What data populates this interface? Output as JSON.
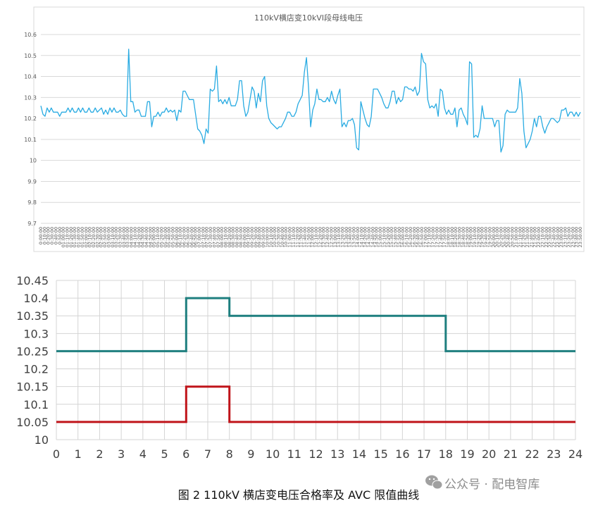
{
  "chart_data": [
    {
      "type": "line",
      "title": "110kV横店变10kVI段母线电压",
      "xlabel": "",
      "ylabel": "",
      "ylim": [
        9.7,
        10.6
      ],
      "y_ticks": [
        "9.7",
        "9.8",
        "9.9",
        "10",
        "10.1",
        "10.2",
        "10.3",
        "10.4",
        "10.5",
        "10.6"
      ],
      "x_tick_labels": [
        "0:00:00",
        "0:10:00",
        "0:20:00",
        "0:30:00",
        "0:40:00",
        "0:50:00",
        "01:00:00",
        "01:10:00",
        "01:20:00",
        "01:30:00",
        "01:40:00",
        "01:50:00",
        "02:00:00",
        "02:10:00",
        "02:20:00",
        "02:30:00",
        "02:40:00",
        "02:50:00",
        "03:00:00",
        "03:10:00",
        "03:20:00",
        "03:30:00",
        "03:40:00",
        "03:50:00",
        "04:00:00",
        "04:10:00",
        "04:20:00",
        "04:30:00",
        "04:40:00",
        "04:50:00",
        "05:00:00",
        "05:10:00",
        "05:20:00",
        "05:30:00",
        "05:40:00",
        "05:50:00",
        "06:00:00",
        "06:10:00",
        "06:20:00",
        "06:30:00",
        "06:40:00",
        "06:50:00",
        "07:00:00",
        "07:10:00",
        "07:20:00",
        "07:30:00",
        "07:40:00",
        "07:50:00",
        "08:00:00",
        "08:10:00",
        "08:20:00",
        "08:30:00",
        "08:40:00",
        "08:50:00",
        "09:00:00",
        "09:10:00",
        "09:20:00",
        "09:30:00",
        "09:40:00",
        "09:50:00",
        "10:00:00",
        "10:10:00",
        "10:20:00",
        "10:30:00",
        "10:40:00",
        "10:50:00",
        "11:00:00",
        "11:10:00",
        "11:20:00",
        "11:30:00",
        "11:40:00",
        "11:50:00",
        "12:00:00",
        "12:10:00",
        "12:20:00",
        "12:30:00",
        "12:40:00",
        "12:50:00",
        "13:00:00",
        "13:10:00",
        "13:20:00",
        "13:30:00",
        "13:40:00",
        "13:50:00",
        "14:00:00",
        "14:10:00",
        "14:20:00",
        "14:30:00",
        "14:40:00",
        "14:50:00",
        "15:00:00",
        "15:10:00",
        "15:20:00",
        "15:30:00",
        "15:40:00",
        "15:50:00",
        "16:00:00",
        "16:10:00",
        "16:20:00",
        "16:30:00",
        "16:40:00",
        "16:50:00",
        "17:00:00",
        "17:10:00",
        "17:20:00",
        "17:30:00",
        "17:40:00",
        "17:50:00",
        "18:00:00",
        "18:10:00",
        "18:20:00",
        "18:30:00",
        "18:40:00",
        "18:50:00",
        "19:00:00",
        "19:10:00",
        "19:20:00",
        "19:30:00",
        "19:40:00",
        "19:50:00",
        "20:00:00",
        "20:10:00",
        "20:20:00",
        "20:30:00",
        "20:40:00",
        "20:50:00",
        "21:00:00",
        "21:10:00",
        "21:20:00",
        "21:30:00",
        "21:40:00",
        "21:50:00",
        "22:00:00",
        "22:10:00",
        "22:20:00",
        "22:30:00",
        "22:40:00",
        "22:50:00",
        "23:00:00",
        "23:10:00",
        "23:20:00",
        "23:30:00",
        "23:40:00",
        "23:50:00"
      ],
      "x_tick_step": 2,
      "grid": true,
      "legend": "none",
      "line_color": "#29abe2",
      "series": [
        {
          "values": [
            10.26,
            10.22,
            10.21,
            10.25,
            10.23,
            10.25,
            10.23,
            10.23,
            10.23,
            10.21,
            10.23,
            10.23,
            10.23,
            10.25,
            10.23,
            10.25,
            10.23,
            10.23,
            10.25,
            10.23,
            10.25,
            10.23,
            10.23,
            10.25,
            10.23,
            10.23,
            10.25,
            10.23,
            10.24,
            10.25,
            10.22,
            10.24,
            10.22,
            10.25,
            10.23,
            10.25,
            10.23,
            10.23,
            10.24,
            10.22,
            10.21,
            10.21,
            10.53,
            10.28,
            10.28,
            10.23,
            10.24,
            10.24,
            10.21,
            10.21,
            10.21,
            10.28,
            10.28,
            10.16,
            10.21,
            10.21,
            10.23,
            10.21,
            10.23,
            10.23,
            10.25,
            10.23,
            10.24,
            10.23,
            10.24,
            10.19,
            10.24,
            10.23,
            10.33,
            10.33,
            10.31,
            10.29,
            10.29,
            10.29,
            10.22,
            10.15,
            10.14,
            10.12,
            10.08,
            10.15,
            10.13,
            10.34,
            10.33,
            10.34,
            10.45,
            10.28,
            10.29,
            10.27,
            10.29,
            10.27,
            10.3,
            10.26,
            10.26,
            10.26,
            10.29,
            10.38,
            10.38,
            10.26,
            10.21,
            10.23,
            10.29,
            10.35,
            10.33,
            10.25,
            10.32,
            10.28,
            10.38,
            10.4,
            10.26,
            10.2,
            10.18,
            10.17,
            10.16,
            10.15,
            10.16,
            10.16,
            10.18,
            10.2,
            10.23,
            10.23,
            10.21,
            10.21,
            10.23,
            10.27,
            10.29,
            10.31,
            10.42,
            10.49,
            10.35,
            10.16,
            10.24,
            10.27,
            10.34,
            10.29,
            10.29,
            10.28,
            10.28,
            10.3,
            10.28,
            10.33,
            10.29,
            10.27,
            10.31,
            10.34,
            10.16,
            10.18,
            10.16,
            10.19,
            10.19,
            10.2,
            10.17,
            10.06,
            10.05,
            10.28,
            10.24,
            10.2,
            10.17,
            10.16,
            10.21,
            10.34,
            10.34,
            10.34,
            10.32,
            10.3,
            10.27,
            10.25,
            10.25,
            10.28,
            10.33,
            10.33,
            10.27,
            10.3,
            10.28,
            10.29,
            10.35,
            10.35,
            10.34,
            10.34,
            10.33,
            10.35,
            10.31,
            10.33,
            10.51,
            10.47,
            10.46,
            10.29,
            10.25,
            10.26,
            10.25,
            10.27,
            10.21,
            10.34,
            10.33,
            10.25,
            10.22,
            10.24,
            10.22,
            10.22,
            10.25,
            10.16,
            10.24,
            10.25,
            10.22,
            10.2,
            10.17,
            10.47,
            10.46,
            10.11,
            10.12,
            10.11,
            10.15,
            10.26,
            10.2,
            10.2,
            10.2,
            10.2,
            10.2,
            10.16,
            10.19,
            10.19,
            10.04,
            10.07,
            10.22,
            10.24,
            10.23,
            10.23,
            10.23,
            10.23,
            10.25,
            10.39,
            10.32,
            10.14,
            10.06,
            10.08,
            10.1,
            10.14,
            10.2,
            10.16,
            10.21,
            10.21,
            10.16,
            10.13,
            10.16,
            10.18,
            10.2,
            10.2,
            10.19,
            10.18,
            10.19,
            10.24,
            10.24,
            10.25,
            10.21,
            10.23,
            10.23,
            10.21,
            10.23,
            10.21,
            10.23
          ]
        }
      ]
    },
    {
      "type": "line",
      "title": "",
      "xlabel": "",
      "ylabel": "",
      "xlim": [
        0,
        24
      ],
      "ylim": [
        10,
        10.45
      ],
      "x_ticks": [
        "0",
        "1",
        "2",
        "3",
        "4",
        "5",
        "6",
        "7",
        "8",
        "9",
        "10",
        "11",
        "12",
        "13",
        "14",
        "15",
        "16",
        "17",
        "18",
        "19",
        "20",
        "21",
        "22",
        "23",
        "24"
      ],
      "y_ticks": [
        "10",
        "10.05",
        "10.1",
        "10.15",
        "10.2",
        "10.25",
        "10.3",
        "10.35",
        "10.4",
        "10.45"
      ],
      "grid": true,
      "legend": "none",
      "series": [
        {
          "color": "#1e7f7f",
          "x": [
            0,
            6,
            6,
            8,
            8,
            18,
            18,
            24
          ],
          "y": [
            10.25,
            10.25,
            10.4,
            10.4,
            10.35,
            10.35,
            10.25,
            10.25
          ]
        },
        {
          "color": "#c0141a",
          "x": [
            0,
            6,
            6,
            8,
            8,
            24
          ],
          "y": [
            10.05,
            10.05,
            10.15,
            10.15,
            10.05,
            10.05
          ]
        }
      ]
    }
  ],
  "caption": "图 2   110kV 横店变电压合格率及 AVC 限值曲线",
  "watermark": "公众号 · 配电智库"
}
